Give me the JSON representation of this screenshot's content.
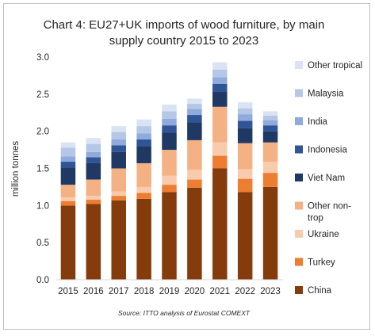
{
  "chart_data": {
    "type": "bar",
    "stacked": true,
    "title_lines": [
      "Chart 4: EU27+UK imports of wood furniture, by main",
      "supply country 2015 to 2023"
    ],
    "ylabel": "million tonnes",
    "ylim": [
      0,
      3.0
    ],
    "yticks": [
      "0.0",
      "0.5",
      "1.0",
      "1.5",
      "2.0",
      "2.5",
      "3.0"
    ],
    "categories": [
      "2015",
      "2016",
      "2017",
      "2018",
      "2019",
      "2020",
      "2021",
      "2022",
      "2023"
    ],
    "series": [
      {
        "name": "China",
        "color": "#843c0c",
        "values": [
          1.0,
          1.02,
          1.07,
          1.09,
          1.18,
          1.24,
          1.5,
          1.18,
          1.25
        ]
      },
      {
        "name": "Turkey",
        "color": "#ed7d31",
        "values": [
          0.06,
          0.06,
          0.06,
          0.08,
          0.1,
          0.11,
          0.17,
          0.18,
          0.19
        ]
      },
      {
        "name": "Ukraine",
        "color": "#f8cbad",
        "values": [
          0.05,
          0.05,
          0.06,
          0.08,
          0.12,
          0.13,
          0.18,
          0.13,
          0.15
        ]
      },
      {
        "name": "Other non-\ntrop",
        "color": "#f4b183",
        "values": [
          0.17,
          0.22,
          0.31,
          0.32,
          0.35,
          0.4,
          0.48,
          0.35,
          0.26
        ]
      },
      {
        "name": "Viet Nam",
        "color": "#1f3864",
        "values": [
          0.23,
          0.22,
          0.22,
          0.23,
          0.23,
          0.24,
          0.2,
          0.2,
          0.15
        ]
      },
      {
        "name": "Indonesia",
        "color": "#2f5597",
        "values": [
          0.08,
          0.08,
          0.09,
          0.09,
          0.1,
          0.1,
          0.11,
          0.1,
          0.08
        ]
      },
      {
        "name": "India",
        "color": "#8faadc",
        "values": [
          0.07,
          0.07,
          0.08,
          0.08,
          0.09,
          0.08,
          0.09,
          0.09,
          0.07
        ]
      },
      {
        "name": "Malaysia",
        "color": "#b4c7e7",
        "values": [
          0.12,
          0.11,
          0.1,
          0.1,
          0.1,
          0.07,
          0.1,
          0.08,
          0.06
        ]
      },
      {
        "name": "Other tropical",
        "color": "#dae3f3",
        "values": [
          0.07,
          0.08,
          0.08,
          0.09,
          0.09,
          0.07,
          0.1,
          0.08,
          0.06
        ]
      }
    ],
    "legend_position": "right",
    "grid": false,
    "source": "Source: ITTO analysis of Eurostat COMEXT"
  }
}
